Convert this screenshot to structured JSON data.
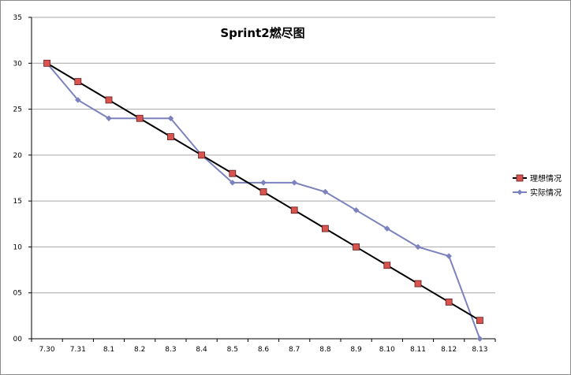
{
  "chart_data": {
    "type": "line",
    "title": "Sprint2燃尽图",
    "xlabel": "",
    "ylabel": "",
    "categories": [
      "7.30",
      "7.31",
      "8.1",
      "8.2",
      "8.3",
      "8.4",
      "8.5",
      "8.6",
      "8.7",
      "8.8",
      "8.9",
      "8.10",
      "8.11",
      "8.12",
      "8.13"
    ],
    "y_tick_labels": [
      "00",
      "05",
      "10",
      "15",
      "20",
      "25",
      "30",
      "35"
    ],
    "ylim": [
      0,
      35
    ],
    "grid": true,
    "legend_position": "right",
    "series": [
      {
        "name": "理想情况",
        "color": "#000000",
        "marker": "square",
        "marker_fill": "#d9534f",
        "values": [
          30,
          28,
          26,
          24,
          22,
          20,
          18,
          16,
          14,
          12,
          10,
          8,
          6,
          4,
          2
        ]
      },
      {
        "name": "实际情况",
        "color": "#7b82bd",
        "marker": "diamond",
        "marker_fill": "#7b82bd",
        "values": [
          30,
          26,
          24,
          24,
          24,
          20,
          17,
          17,
          17,
          16,
          14,
          12,
          10,
          9,
          0
        ]
      }
    ]
  }
}
